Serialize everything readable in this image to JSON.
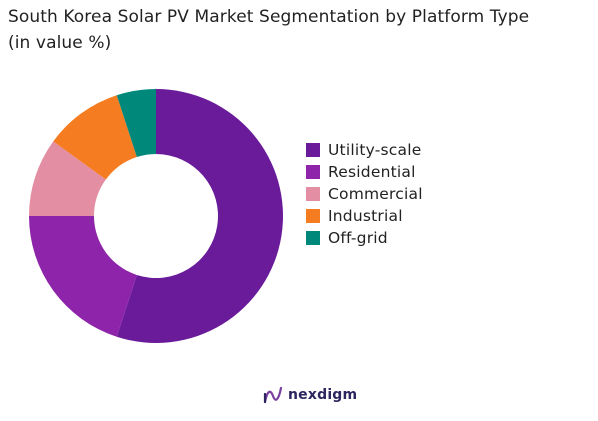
{
  "title": {
    "line1": "South Korea Solar PV Market Segmentation by Platform Type",
    "line2": "(in value %)"
  },
  "chart_data": {
    "type": "pie",
    "variant": "donut",
    "categories": [
      "Utility-scale",
      "Residential",
      "Commercial",
      "Industrial",
      "Off-grid"
    ],
    "values": [
      55,
      20,
      10,
      10,
      5
    ],
    "colors": [
      "#6a1b9a",
      "#8e24aa",
      "#e38ea2",
      "#f57c20",
      "#00897b"
    ],
    "legend_position": "right"
  },
  "brand": {
    "name": "nexdigm",
    "logo_icon": "nexdigm-logo-icon",
    "color": "#2b2560"
  }
}
